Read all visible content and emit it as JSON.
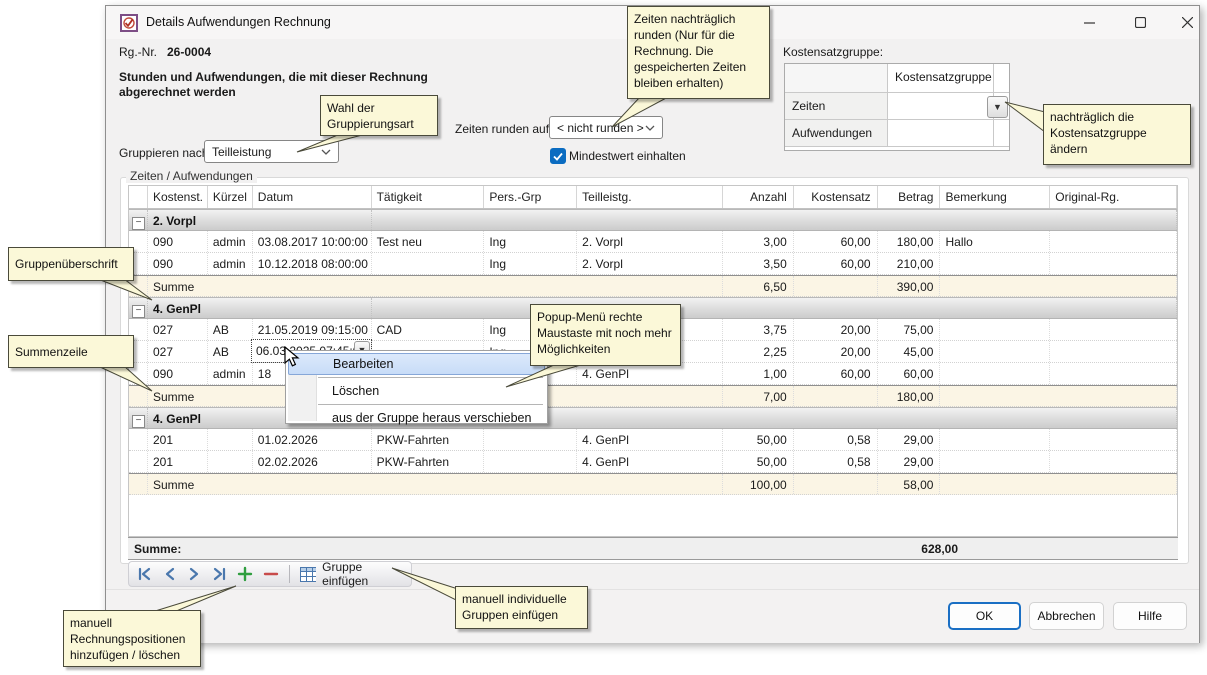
{
  "window": {
    "title": "Details Aufwendungen Rechnung",
    "controls": [
      "minimize",
      "maximize",
      "close"
    ]
  },
  "header": {
    "rg_label": "Rg.-Nr.",
    "rg_value": "26-0004",
    "subtitle": "Stunden und Aufwendungen, die mit dieser Rechnung\nabgerechnet werden"
  },
  "controls": {
    "group_by_label": "Gruppieren nach:",
    "group_by_value": "Teilleistung",
    "round_label": "Zeiten runden auf:",
    "round_value": "< nicht runden >",
    "min_checkbox_label": "Mindestwert einhalten",
    "min_checkbox_checked": true,
    "kostensatz_label": "Kostensatzgruppe:",
    "kostensatz_col_header": "Kostensatzgruppe",
    "kostensatz_rows": [
      "Zeiten",
      "Aufwendungen"
    ]
  },
  "groupbox_label": "Zeiten / Aufwendungen",
  "table": {
    "columns": [
      "Kostenst.",
      "Kürzel",
      "Datum",
      "Tätigkeit",
      "Pers.-Grp",
      "Teilleistg.",
      "Anzahl",
      "Kostensatz",
      "Betrag",
      "Bemerkung",
      "Original-Rg."
    ],
    "sum_label": "Summe",
    "groups": [
      {
        "name": "2. Vorpl",
        "rows": [
          {
            "cells": [
              "090",
              "admin",
              "03.08.2017 10:00:00",
              "Test neu",
              "Ing",
              "2. Vorpl",
              "3,00",
              "60,00",
              "180,00",
              "Hallo",
              ""
            ]
          },
          {
            "cells": [
              "090",
              "admin",
              "10.12.2018 08:00:00",
              "",
              "Ing",
              "2. Vorpl",
              "3,50",
              "60,00",
              "210,00",
              "",
              ""
            ]
          }
        ],
        "sum": {
          "anzahl": "6,50",
          "betrag": "390,00"
        }
      },
      {
        "name": "4. GenPl",
        "rows": [
          {
            "cells": [
              "027",
              "AB",
              "21.05.2019 09:15:00",
              "CAD",
              "Ing",
              "4. GenPl",
              "3,75",
              "20,00",
              "75,00",
              "",
              ""
            ]
          },
          {
            "cells": [
              "027",
              "AB",
              "06.03.2025 07:45:0",
              "",
              "Ing",
              "4. GenPl",
              "2,25",
              "20,00",
              "45,00",
              "",
              ""
            ],
            "editing": true
          },
          {
            "cells": [
              "090",
              "admin",
              "18",
              "",
              "",
              "4. GenPl",
              "1,00",
              "60,00",
              "60,00",
              "",
              ""
            ]
          }
        ],
        "sum": {
          "anzahl": "7,00",
          "betrag": "180,00"
        }
      },
      {
        "name": "4. GenPl",
        "rows": [
          {
            "cells": [
              "201",
              "",
              "01.02.2026",
              "PKW-Fahrten",
              "",
              "4. GenPl",
              "50,00",
              "0,58",
              "29,00",
              "",
              ""
            ]
          },
          {
            "cells": [
              "201",
              "",
              "02.02.2026",
              "PKW-Fahrten",
              "",
              "4. GenPl",
              "50,00",
              "0,58",
              "29,00",
              "",
              ""
            ]
          }
        ],
        "sum": {
          "anzahl": "100,00",
          "betrag": "58,00"
        }
      }
    ],
    "footer": {
      "label": "Summe:",
      "total": "628,00"
    }
  },
  "context_menu": {
    "items": [
      "Bearbeiten",
      "Löschen",
      "aus der Gruppe heraus verschieben"
    ],
    "selected_index": 0
  },
  "toolbar": {
    "icons": [
      "first-record",
      "previous-record",
      "next-record",
      "last-record",
      "add-row",
      "delete-row"
    ],
    "group_insert_label": "Gruppe einfügen"
  },
  "buttons": {
    "ok": "OK",
    "cancel": "Abbrechen",
    "help": "Hilfe"
  },
  "callouts": {
    "round_note": "Zeiten nachträglich runden (Nur für die Rechnung. Die gespeicherten Zeiten bleiben erhalten)",
    "grouping_note": "Wahl der Gruppierungsart",
    "kostensatz_note": "nachträglich die Kostensatzgruppe ändern",
    "group_header_note": "Gruppenüberschrift",
    "sum_row_note": "Summenzeile",
    "popup_note": "Popup-Menü rechte Maustaste mit noch mehr Möglichkeiten",
    "insert_group_note": "manuell individuelle Gruppen einfügen",
    "add_remove_note": "manuell Rechnungspositionen hinzufügen / löschen"
  },
  "colors": {
    "accent_blue": "#0b6cc1",
    "callout_bg": "#fbf8d8",
    "sum_row_bg": "#fbf5e5"
  }
}
